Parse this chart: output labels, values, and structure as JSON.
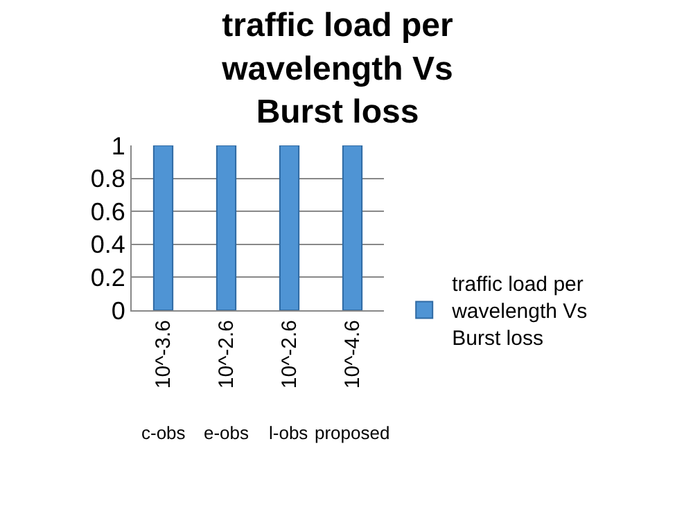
{
  "chart_data": {
    "type": "bar",
    "title": "traffic load per wavelength Vs Burst loss",
    "categories": [
      "10^-3.6",
      "10^-2.6",
      "10^-2.6",
      "10^-4.6"
    ],
    "series": [
      {
        "name": "traffic load per wavelength Vs Burst loss",
        "color": "#4f94d4",
        "values": [
          1,
          1,
          1,
          1
        ]
      }
    ],
    "ylim": [
      0,
      1
    ],
    "yticks": [
      0,
      0.2,
      0.4,
      0.6,
      0.8,
      1
    ],
    "grid": "y",
    "legend": "right",
    "annotations": [
      "c-obs",
      "e-obs",
      "l-obs",
      "proposed"
    ]
  }
}
